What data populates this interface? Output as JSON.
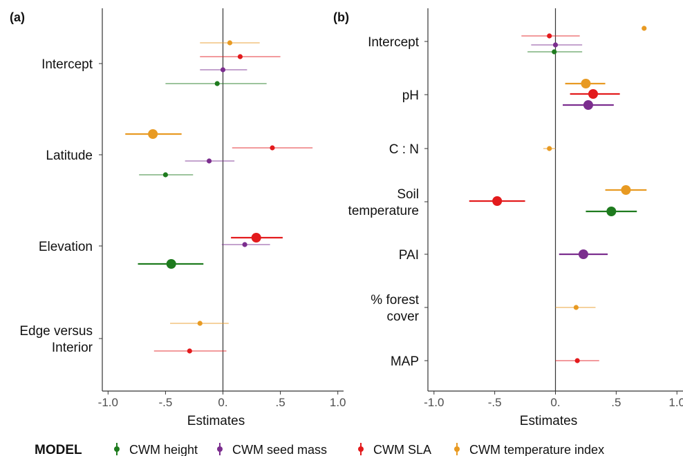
{
  "colors": {
    "height": "#1e7b1e",
    "seed": "#7b2d8e",
    "sla": "#e31a1c",
    "temp": "#e89a22",
    "axis": "#333333"
  },
  "legend": {
    "title": "MODEL",
    "items": [
      {
        "key": "height",
        "label": "CWM height"
      },
      {
        "key": "seed",
        "label": "CWM seed mass"
      },
      {
        "key": "sla",
        "label": "CWM SLA"
      },
      {
        "key": "temp",
        "label": "CWM temperature index"
      }
    ]
  },
  "chart_data": [
    {
      "panel": "(a)",
      "type": "scatter",
      "subtype": "coefficient-plot",
      "xlabel": "Estimates",
      "xlim": [
        -1.05,
        1.05
      ],
      "xticks": [
        -1.0,
        -0.5,
        0.0,
        0.5,
        1.0
      ],
      "xtick_labels": [
        "-1.0",
        "-.5",
        "0.",
        ".5",
        "1.0"
      ],
      "categories": [
        {
          "label": [
            "Intercept"
          ],
          "points": [
            {
              "model": "temp",
              "est": 0.06,
              "lo": -0.2,
              "hi": 0.32,
              "sig": false
            },
            {
              "model": "sla",
              "est": 0.15,
              "lo": -0.2,
              "hi": 0.5,
              "sig": false
            },
            {
              "model": "seed",
              "est": 0.0,
              "lo": -0.2,
              "hi": 0.21,
              "sig": false
            },
            {
              "model": "height",
              "est": -0.05,
              "lo": -0.5,
              "hi": 0.38,
              "sig": false
            }
          ]
        },
        {
          "label": [
            "Latitude"
          ],
          "points": [
            {
              "model": "temp",
              "est": -0.61,
              "lo": -0.85,
              "hi": -0.36,
              "sig": true
            },
            {
              "model": "sla",
              "est": 0.43,
              "lo": 0.08,
              "hi": 0.78,
              "sig": false
            },
            {
              "model": "seed",
              "est": -0.12,
              "lo": -0.33,
              "hi": 0.1,
              "sig": false
            },
            {
              "model": "height",
              "est": -0.5,
              "lo": -0.73,
              "hi": -0.26,
              "sig": false
            }
          ]
        },
        {
          "label": [
            "Elevation"
          ],
          "points": [
            {
              "model": "sla",
              "est": 0.29,
              "lo": 0.07,
              "hi": 0.52,
              "sig": true
            },
            {
              "model": "seed",
              "est": 0.19,
              "lo": -0.01,
              "hi": 0.41,
              "sig": false
            },
            {
              "model": "height",
              "est": -0.45,
              "lo": -0.74,
              "hi": -0.17,
              "sig": true
            }
          ]
        },
        {
          "label": [
            "Edge versus",
            "Interior"
          ],
          "points": [
            {
              "model": "temp",
              "est": -0.2,
              "lo": -0.46,
              "hi": 0.05,
              "sig": false
            },
            {
              "model": "sla",
              "est": -0.29,
              "lo": -0.6,
              "hi": 0.03,
              "sig": false
            }
          ]
        }
      ]
    },
    {
      "panel": "(b)",
      "type": "scatter",
      "subtype": "coefficient-plot",
      "xlabel": "Estimates",
      "xlim": [
        -1.05,
        1.05
      ],
      "xticks": [
        -1.0,
        -0.5,
        0.0,
        0.5,
        1.0
      ],
      "xtick_labels": [
        "-1.0",
        "-.5",
        "0.",
        ".5",
        "1.0"
      ],
      "categories": [
        {
          "label": [
            "Intercept"
          ],
          "points": [
            {
              "model": "temp",
              "est": 0.73,
              "lo": 0.73,
              "hi": 0.73,
              "sig": false
            },
            {
              "model": "sla",
              "est": -0.05,
              "lo": -0.28,
              "hi": 0.2,
              "sig": false
            },
            {
              "model": "seed",
              "est": 0.0,
              "lo": -0.2,
              "hi": 0.22,
              "sig": false
            },
            {
              "model": "height",
              "est": -0.01,
              "lo": -0.23,
              "hi": 0.22,
              "sig": false
            }
          ]
        },
        {
          "label": [
            "pH"
          ],
          "points": [
            {
              "model": "temp",
              "est": 0.25,
              "lo": 0.08,
              "hi": 0.41,
              "sig": true
            },
            {
              "model": "sla",
              "est": 0.31,
              "lo": 0.12,
              "hi": 0.53,
              "sig": true
            },
            {
              "model": "seed",
              "est": 0.27,
              "lo": 0.06,
              "hi": 0.48,
              "sig": true
            }
          ]
        },
        {
          "label": [
            "C : N"
          ],
          "points": [
            {
              "model": "temp",
              "est": -0.05,
              "lo": -0.1,
              "hi": 0.0,
              "sig": false
            }
          ]
        },
        {
          "label": [
            "Soil",
            "temperature"
          ],
          "points": [
            {
              "model": "temp",
              "est": 0.58,
              "lo": 0.41,
              "hi": 0.75,
              "sig": true
            },
            {
              "model": "sla",
              "est": -0.48,
              "lo": -0.71,
              "hi": -0.25,
              "sig": true
            },
            {
              "model": "height",
              "est": 0.46,
              "lo": 0.25,
              "hi": 0.67,
              "sig": true
            }
          ]
        },
        {
          "label": [
            "PAI"
          ],
          "points": [
            {
              "model": "seed",
              "est": 0.23,
              "lo": 0.03,
              "hi": 0.43,
              "sig": true
            }
          ]
        },
        {
          "label": [
            "% forest",
            "cover"
          ],
          "points": [
            {
              "model": "temp",
              "est": 0.17,
              "lo": 0.0,
              "hi": 0.33,
              "sig": false
            }
          ]
        },
        {
          "label": [
            "MAP"
          ],
          "points": [
            {
              "model": "sla",
              "est": 0.18,
              "lo": 0.0,
              "hi": 0.36,
              "sig": false
            }
          ]
        }
      ]
    }
  ]
}
